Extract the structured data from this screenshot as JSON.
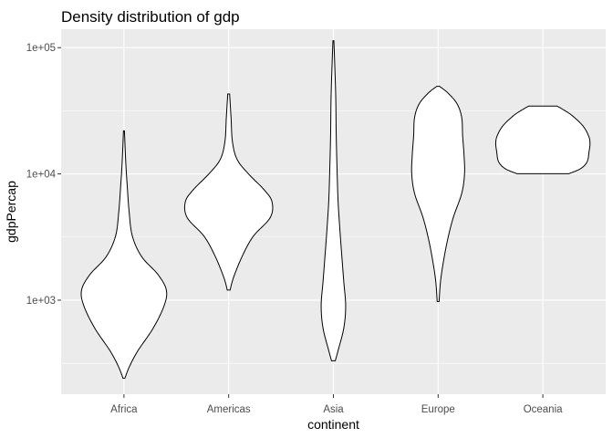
{
  "chart_data": {
    "type": "violin",
    "title": "Density distribution of gdp",
    "xlabel": "continent",
    "ylabel": "gdpPercap",
    "y_scale": "log10",
    "ylim": [
      180,
      140000
    ],
    "y_ticks": [
      {
        "value": 1000,
        "label": "1e+03"
      },
      {
        "value": 10000,
        "label": "1e+04"
      },
      {
        "value": 100000,
        "label": "1e+05"
      }
    ],
    "y_minor_ticks": [
      316,
      3162,
      31623
    ],
    "categories": [
      "Africa",
      "Americas",
      "Asia",
      "Europe",
      "Oceania"
    ],
    "violins": [
      {
        "category": "Africa",
        "min": 241,
        "max": 21951,
        "profile": [
          [
            241,
            0.02
          ],
          [
            300,
            0.12
          ],
          [
            400,
            0.3
          ],
          [
            600,
            0.62
          ],
          [
            900,
            0.85
          ],
          [
            1200,
            0.9
          ],
          [
            1600,
            0.72
          ],
          [
            2200,
            0.38
          ],
          [
            3200,
            0.18
          ],
          [
            5000,
            0.11
          ],
          [
            8000,
            0.07
          ],
          [
            12000,
            0.04
          ],
          [
            21951,
            0.01
          ]
        ]
      },
      {
        "category": "Americas",
        "min": 1202,
        "max": 42952,
        "profile": [
          [
            1202,
            0.03
          ],
          [
            1500,
            0.1
          ],
          [
            2200,
            0.28
          ],
          [
            3200,
            0.52
          ],
          [
            4500,
            0.88
          ],
          [
            6000,
            0.92
          ],
          [
            7500,
            0.75
          ],
          [
            10000,
            0.42
          ],
          [
            13000,
            0.18
          ],
          [
            18000,
            0.08
          ],
          [
            28000,
            0.05
          ],
          [
            42952,
            0.02
          ]
        ]
      },
      {
        "category": "Asia",
        "min": 331,
        "max": 113523,
        "profile": [
          [
            331,
            0.04
          ],
          [
            400,
            0.1
          ],
          [
            600,
            0.22
          ],
          [
            900,
            0.26
          ],
          [
            1400,
            0.22
          ],
          [
            2200,
            0.18
          ],
          [
            3500,
            0.14
          ],
          [
            6000,
            0.1
          ],
          [
            10000,
            0.08
          ],
          [
            20000,
            0.06
          ],
          [
            40000,
            0.05
          ],
          [
            70000,
            0.03
          ],
          [
            113523,
            0.01
          ]
        ]
      },
      {
        "category": "Europe",
        "min": 974,
        "max": 49357,
        "profile": [
          [
            974,
            0.02
          ],
          [
            1400,
            0.05
          ],
          [
            2000,
            0.11
          ],
          [
            3000,
            0.2
          ],
          [
            4500,
            0.32
          ],
          [
            7000,
            0.5
          ],
          [
            10000,
            0.56
          ],
          [
            14000,
            0.55
          ],
          [
            20000,
            0.52
          ],
          [
            28000,
            0.5
          ],
          [
            36000,
            0.4
          ],
          [
            44000,
            0.2
          ],
          [
            49357,
            0.03
          ]
        ]
      },
      {
        "category": "Oceania",
        "min": 10040,
        "max": 34435,
        "profile": [
          [
            10040,
            0.55
          ],
          [
            11000,
            0.8
          ],
          [
            12500,
            0.94
          ],
          [
            15000,
            0.98
          ],
          [
            17500,
            1.0
          ],
          [
            20000,
            0.97
          ],
          [
            24000,
            0.85
          ],
          [
            29000,
            0.62
          ],
          [
            32500,
            0.42
          ],
          [
            34435,
            0.3
          ]
        ]
      }
    ]
  }
}
